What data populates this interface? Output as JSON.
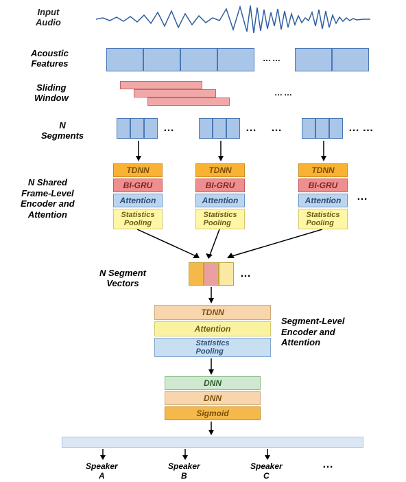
{
  "labels": {
    "input_audio": "Input\nAudio",
    "acoustic": "Acoustic\nFeatures",
    "sliding": "Sliding\nWindow",
    "nseg": "N\nSegments",
    "nshared": "N Shared\nFrame-Level\nEncoder and\nAttention",
    "nsegvec": "N Segment\nVectors",
    "seglevel": "Segment-Level\nEncoder and\nAttention",
    "spA": "Speaker\nA",
    "spB": "Speaker\nB",
    "spC": "Speaker\nC"
  },
  "blocks": {
    "tdnn": "TDNN",
    "bigru": "BI-GRU",
    "attention": "Attention",
    "stats": "Statistics\nPooling",
    "tdnn2": "TDNN",
    "attention2": "Attention",
    "stats2": "Statistics\nPooling",
    "dnn1": "DNN",
    "dnn2": "DNN",
    "sigmoid": "Sigmoid"
  },
  "colors": {
    "waveform": "#2e5f9e",
    "feat_fill": "#a9c5e8",
    "feat_border": "#4a77b5",
    "slide_fill": "#f1a8a8",
    "slide_border": "#c66",
    "tdnn_fill": "#f9b233",
    "tdnn_border": "#c98c1f",
    "tdnn_text": "#7a4f0b",
    "bigru_fill": "#ef8e8e",
    "bigru_border": "#c85a5a",
    "bigru_text": "#7a2626",
    "att_fill": "#bcd5ef",
    "att_border": "#6a94c4",
    "att_text": "#2b4d76",
    "stats_fill": "#fff6a6",
    "stats_border": "#d6c869",
    "stats_text": "#6b5e14",
    "segvec1": "#f4b94a",
    "segvec2": "#ec9fa0",
    "segvec3": "#f9e9a5",
    "segvec_border": "#bfa23a",
    "tdnn2_fill": "#f7d6ad",
    "tdnn2_border": "#d0a979",
    "tdnn2_text": "#7a4f0b",
    "att2_fill": "#f9f2a0",
    "att2_border": "#d6c869",
    "att2_text": "#6b5e14",
    "stats2_fill": "#c8dff2",
    "stats2_border": "#7ea7cf",
    "stats2_text": "#2b4d76",
    "dnn1_fill": "#cfe8cf",
    "dnn1_border": "#8abf8a",
    "dnn1_text": "#2f5d2f",
    "dnn2_fill": "#f7d6ad",
    "dnn2_border": "#d0a979",
    "dnn2_text": "#7a4f0b",
    "sig_fill": "#f4b94a",
    "sig_border": "#c98c1f",
    "sig_text": "#7a4f0b",
    "outbar_fill": "#dbe7f5",
    "outbar_border": "#a9c5e8",
    "arrow": "#000000",
    "label_text": "#222"
  },
  "fontsize": {
    "label": 13,
    "block": 12,
    "small": 11,
    "dots": 16,
    "speaker": 12
  },
  "dots": "…"
}
